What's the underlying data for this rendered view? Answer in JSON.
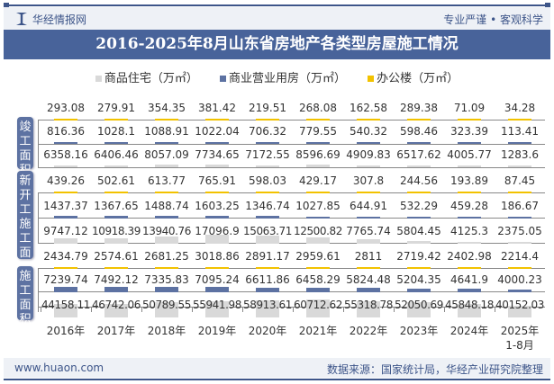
{
  "header": {
    "brand": "华经情报网",
    "slogan": "专业严谨 • 客观科学"
  },
  "footer": {
    "url": "www.huaon.com",
    "source": "数据来源：国家统计局，华经产业研究院整理"
  },
  "chart_data": {
    "type": "table",
    "title": "2016-2025年8月山东省房地产各类型房屋施工情况",
    "legend": [
      {
        "name": "商品住宅（万㎡）",
        "color": "#d9d9d9"
      },
      {
        "name": "商业营业用房（万㎡）",
        "color": "#5d72a2"
      },
      {
        "name": "办公楼（万㎡）",
        "color": "#f2c200"
      }
    ],
    "categories": [
      "2016年",
      "2017年",
      "2018年",
      "2019年",
      "2020年",
      "2021年",
      "2022年",
      "2023年",
      "2024年",
      "2025年\n1-8月"
    ],
    "panels": [
      {
        "label": "竣工面积",
        "series": [
          {
            "name": "办公楼",
            "values": [
              "293.08",
              "279.91",
              "354.35",
              "381.42",
              "219.51",
              "268.08",
              "162.58",
              "289.38",
              "71.09",
              "34.28"
            ]
          },
          {
            "name": "商业营业用房",
            "values": [
              "816.36",
              "1028.1",
              "1088.91",
              "1022.04",
              "706.32",
              "779.55",
              "540.32",
              "598.46",
              "323.39",
              "113.41"
            ]
          },
          {
            "name": "商品住宅",
            "values": [
              "6358.16",
              "6406.46",
              "8057.09",
              "7734.65",
              "7172.55",
              "8596.69",
              "4909.83",
              "6517.62",
              "4005.77",
              "1283.6"
            ]
          }
        ]
      },
      {
        "label": "新开工施工面",
        "series": [
          {
            "name": "办公楼",
            "values": [
              "439.26",
              "502.61",
              "613.77",
              "765.91",
              "598.03",
              "429.17",
              "307.8",
              "244.56",
              "193.89",
              "87.45"
            ]
          },
          {
            "name": "商业营业用房",
            "values": [
              "1437.37",
              "1367.65",
              "1488.74",
              "1603.25",
              "1346.74",
              "1027.85",
              "644.91",
              "532.29",
              "459.28",
              "186.67"
            ]
          },
          {
            "name": "商品住宅",
            "values": [
              "9747.12",
              "10918.39",
              "13940.76",
              "17096.9",
              "15063.71",
              "12500.82",
              "7765.74",
              "5804.45",
              "4125.3",
              "2375.05"
            ]
          }
        ]
      },
      {
        "label": "施工面积",
        "series": [
          {
            "name": "办公楼",
            "values": [
              "2434.79",
              "2574.61",
              "2681.25",
              "3018.86",
              "2891.17",
              "2959.61",
              "2811",
              "2719.42",
              "2402.98",
              "2214.4"
            ]
          },
          {
            "name": "商业营业用房",
            "values": [
              "7239.74",
              "7492.12",
              "7335.83",
              "7095.24",
              "6611.86",
              "6458.29",
              "5824.48",
              "5204.35",
              "4641.9",
              "4000.23"
            ]
          },
          {
            "name": "商品住宅",
            "values": [
              "44158.11",
              "46742.06",
              "50789.55",
              "55941.98",
              "58913.61",
              "60712.62",
              "55318.78",
              "52050.69",
              "45848.18",
              "40152.03"
            ]
          }
        ]
      }
    ]
  }
}
